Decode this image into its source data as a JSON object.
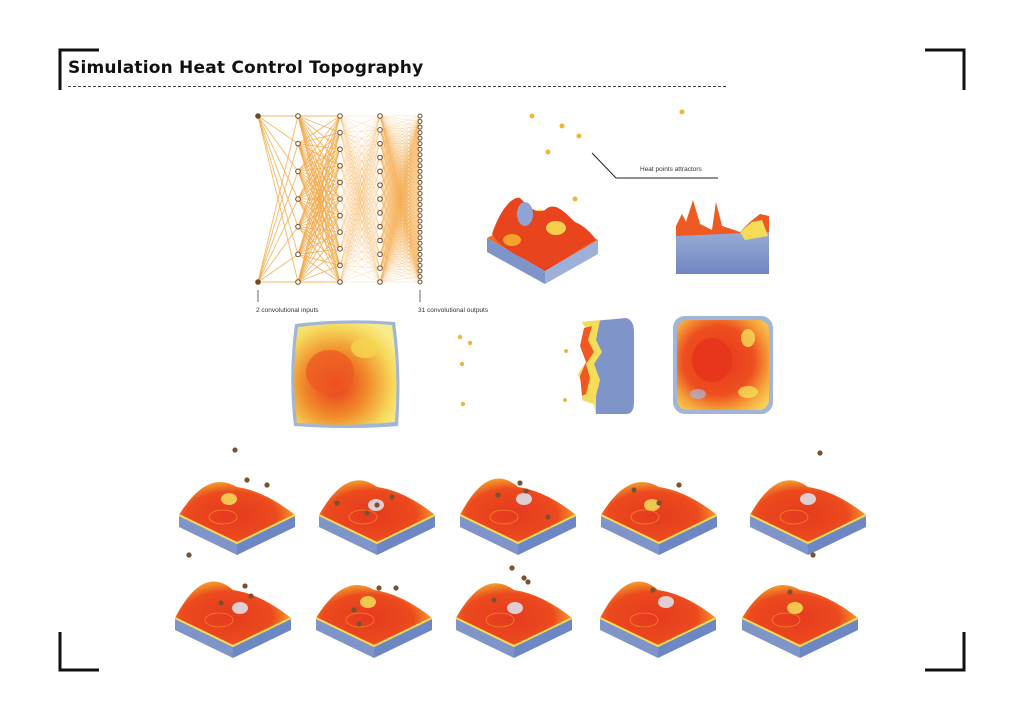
{
  "page": {
    "title": "Simulation Heat Control Topography"
  },
  "network": {
    "inputs_label": "2 convolutional inputs",
    "outputs_label": "31 convolutional outputs",
    "layer_node_counts": [
      2,
      7,
      11,
      13,
      31
    ]
  },
  "annotations": {
    "attractors_label": "Heat points attractors"
  },
  "colors": {
    "hot": "#e8361c",
    "warm": "#f7a12a",
    "mild": "#f6dd59",
    "cool": "#7f95c9",
    "node": "#6d4a2a",
    "link": "#f3a53f",
    "attractor": "#f2b43a",
    "brown_dot": "#7a5232"
  }
}
